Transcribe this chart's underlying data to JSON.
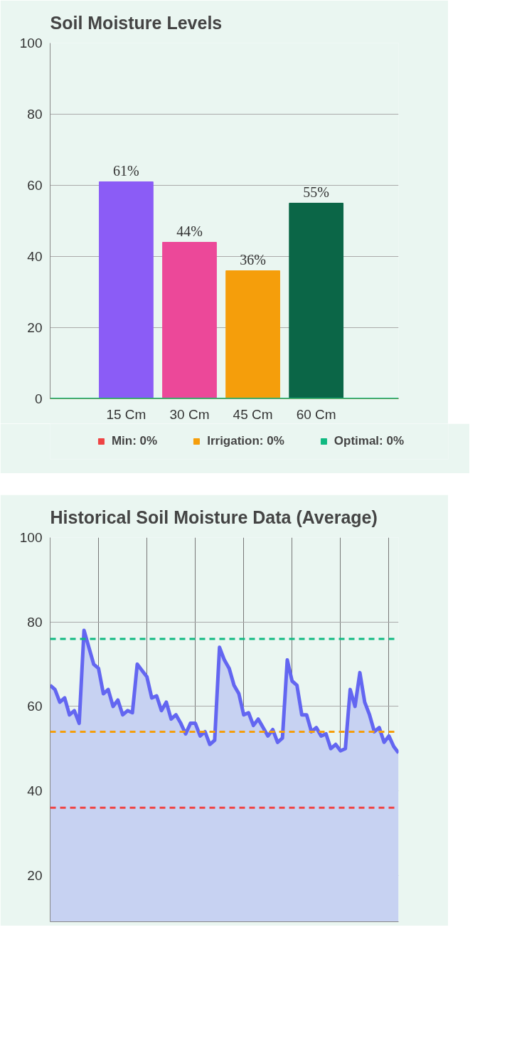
{
  "chart_data": [
    {
      "type": "bar",
      "title": "Soil Moisture Levels",
      "categories": [
        "15 Cm",
        "30 Cm",
        "45 Cm",
        "60 Cm"
      ],
      "values": [
        61,
        44,
        36,
        55
      ],
      "value_labels": [
        "61%",
        "44%",
        "36%",
        "55%"
      ],
      "colors": [
        "#8b5cf6",
        "#ec4899",
        "#f59e0b",
        "#0b6647"
      ],
      "ylim": [
        0,
        100
      ],
      "yticks": [
        0,
        20,
        40,
        60,
        80,
        100
      ],
      "grid": "y",
      "legend": "bottom",
      "ref_lines": [
        {
          "axis": "y",
          "value": 0,
          "label": "Min: 0%",
          "color": "#ef4444"
        },
        {
          "axis": "y",
          "value": 0,
          "label": "Irrigation: 0%",
          "color": "#f59e0b"
        },
        {
          "axis": "y",
          "value": 0,
          "label": "Optimal: 0%",
          "color": "#10b981"
        }
      ]
    },
    {
      "type": "area",
      "title": "Historical Soil Moisture Data (Average)",
      "categories": [
        null,
        null,
        null,
        null,
        null,
        null,
        null,
        null,
        null,
        null,
        null,
        null,
        null,
        null,
        null,
        null,
        null,
        null,
        null,
        null,
        null,
        null,
        null,
        null,
        null,
        null,
        null,
        null,
        null,
        null,
        null,
        null,
        null,
        null,
        null,
        null,
        null,
        null,
        null,
        null,
        null,
        null,
        null,
        null,
        null,
        null,
        null,
        null,
        null,
        null,
        null,
        null,
        null,
        null,
        null,
        null,
        null,
        null,
        null,
        null,
        null,
        null,
        null,
        null,
        null,
        null,
        null,
        null,
        null,
        null,
        null,
        null,
        null
      ],
      "series": [
        {
          "color": "#6366f1",
          "values": [
            65,
            64,
            61,
            62,
            58,
            59,
            56,
            78,
            74,
            70,
            69,
            63,
            64,
            60,
            61.5,
            58,
            59,
            58.5,
            70,
            68.5,
            67,
            62,
            62.5,
            59,
            61,
            57,
            58,
            56,
            53.5,
            56,
            56,
            53,
            54,
            51,
            52,
            74,
            71,
            69,
            65,
            63,
            58,
            58.5,
            55.5,
            57,
            55,
            53,
            54.5,
            51.5,
            52.5,
            71,
            66,
            65,
            58,
            58,
            54,
            55,
            53,
            53.5,
            50,
            51,
            49.5,
            50,
            64,
            60,
            68,
            61,
            58,
            54,
            55,
            51.5,
            53,
            50.5,
            49
          ]
        }
      ],
      "ylim": [
        9,
        100
      ],
      "yticks": [
        20,
        40,
        60,
        80,
        100
      ],
      "grid": true,
      "line_style": "solid",
      "marker": "none",
      "ref_lines": [
        {
          "axis": "y",
          "value": 76,
          "color": "#10b981",
          "line_style": "dashed"
        },
        {
          "axis": "y",
          "value": 54,
          "color": "#f59e0b",
          "line_style": "dashed"
        },
        {
          "axis": "y",
          "value": 36,
          "color": "#ef4444",
          "line_style": "dashed"
        }
      ]
    }
  ]
}
